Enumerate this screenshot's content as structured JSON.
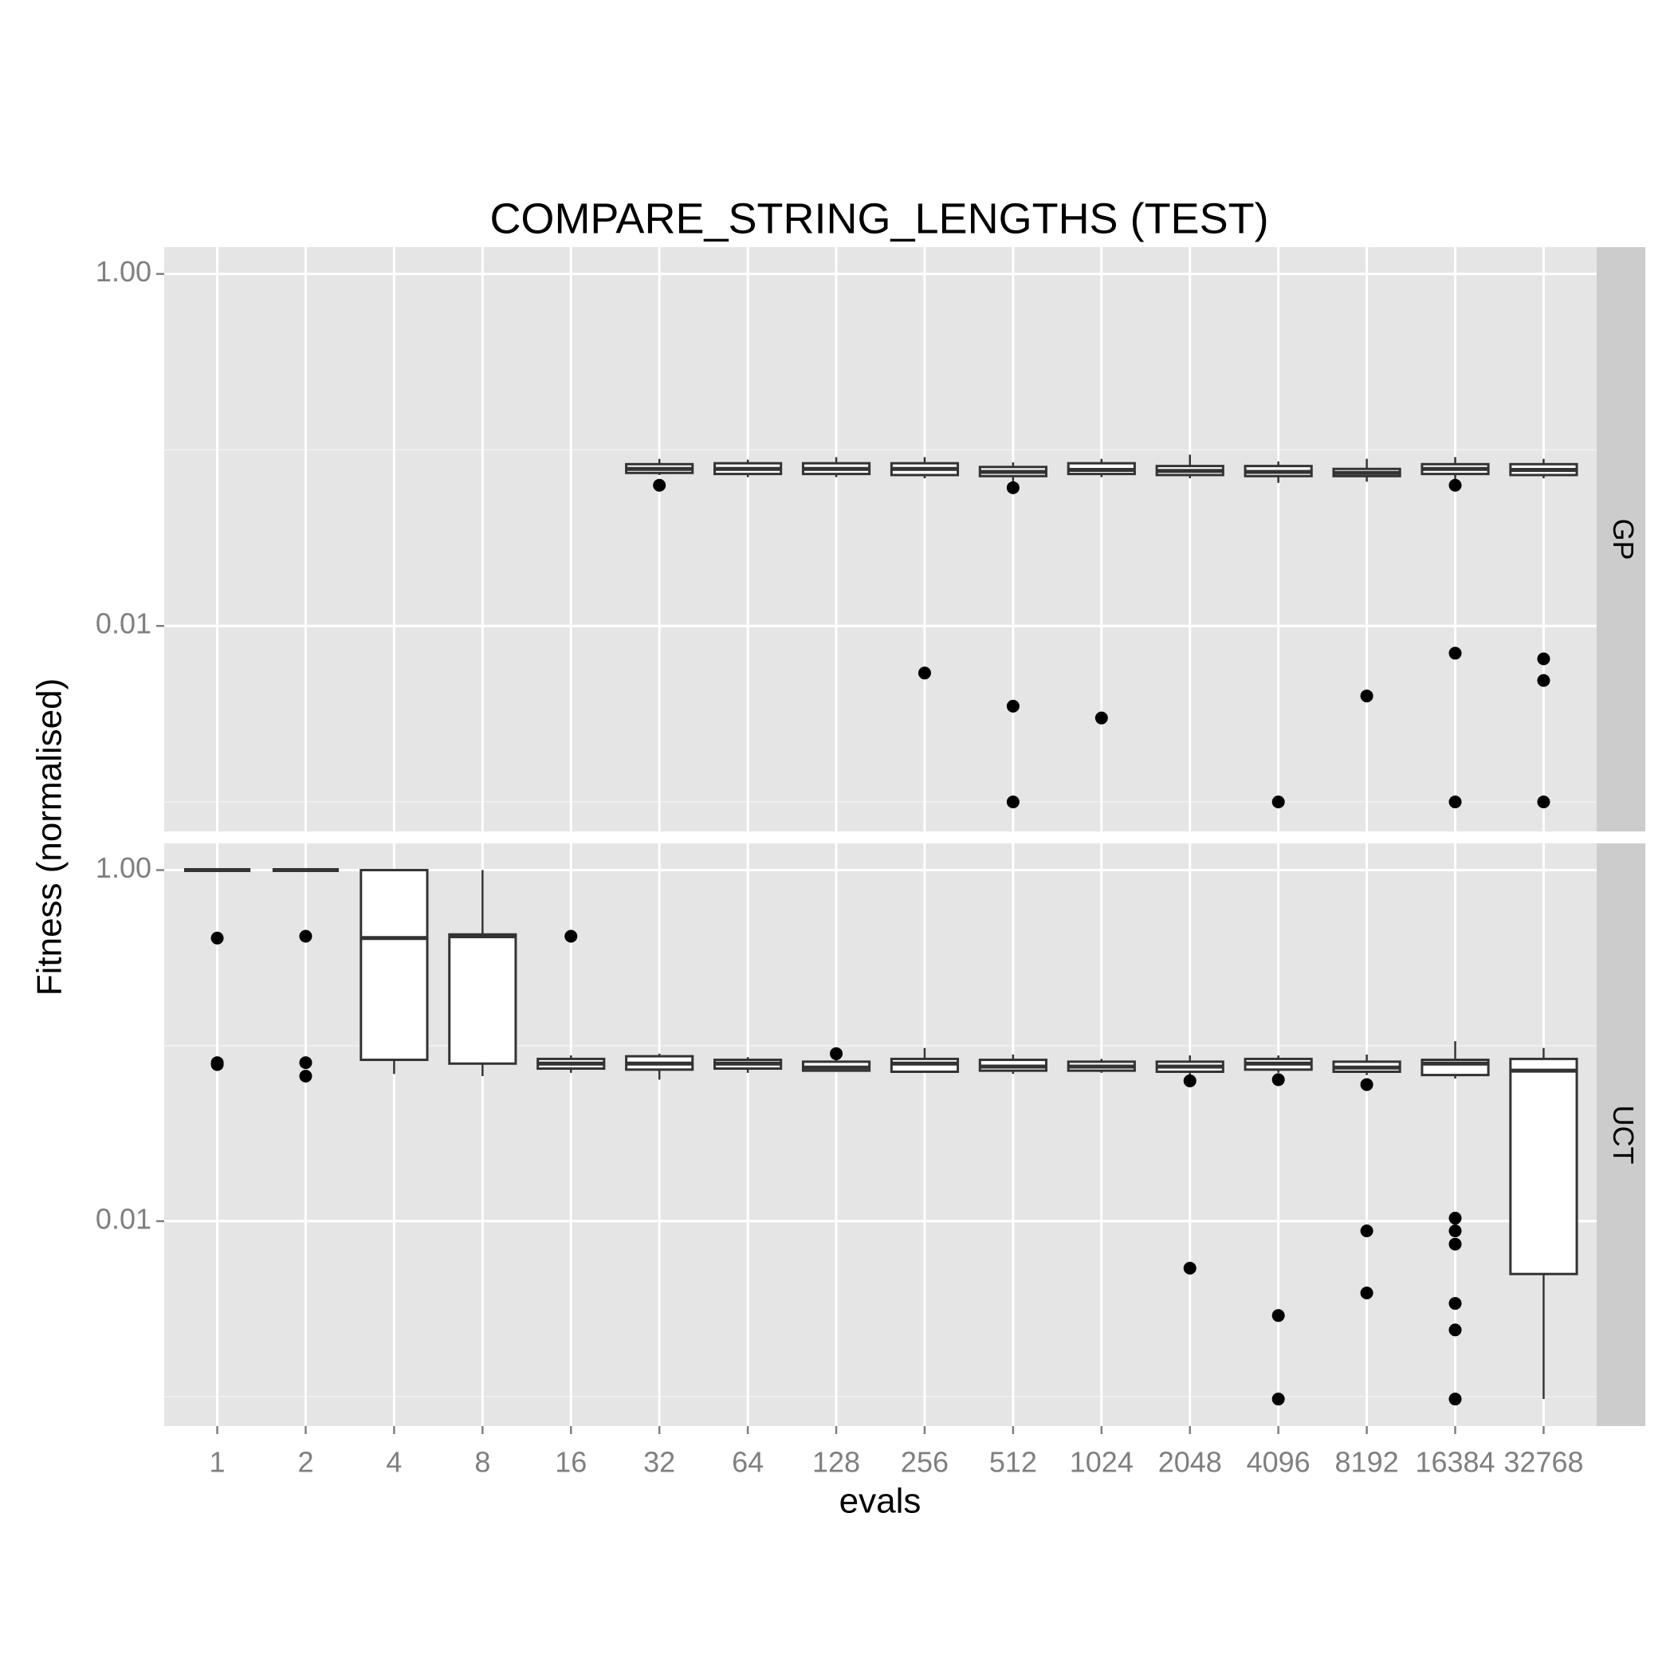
{
  "chart_data": {
    "type": "boxplot",
    "title": "COMPARE_STRING_LENGTHS (TEST)",
    "x_label": "evals",
    "y_label": "Fitness (normalised)",
    "log_y": true,
    "grid": true,
    "categories": [
      "1",
      "2",
      "4",
      "8",
      "16",
      "32",
      "64",
      "128",
      "256",
      "512",
      "1024",
      "2048",
      "4096",
      "8192",
      "16384",
      "32768"
    ],
    "ylim": [
      0.00068,
      1.42
    ],
    "yticks": [
      {
        "value": 0.01,
        "label": "0.01"
      },
      {
        "value": 1,
        "label": "1.00"
      }
    ],
    "minor_yticks": [
      0.001,
      0.1
    ],
    "box_color": "#333333",
    "series": [
      {
        "name": "GP",
        "fill": "#ffffff",
        "boxes": [
          null,
          null,
          null,
          null,
          null,
          {
            "min": 0.072,
            "q1": 0.074,
            "median": 0.078,
            "q3": 0.083,
            "max": 0.089,
            "outliers": [
              0.063
            ]
          },
          {
            "min": 0.07,
            "q1": 0.073,
            "median": 0.078,
            "q3": 0.084,
            "max": 0.088,
            "outliers": []
          },
          {
            "min": 0.07,
            "q1": 0.073,
            "median": 0.078,
            "q3": 0.084,
            "max": 0.091,
            "outliers": []
          },
          {
            "min": 0.069,
            "q1": 0.072,
            "median": 0.078,
            "q3": 0.084,
            "max": 0.091,
            "outliers": [
              0.0054
            ]
          },
          {
            "min": 0.066,
            "q1": 0.071,
            "median": 0.075,
            "q3": 0.08,
            "max": 0.085,
            "outliers": [
              0.061,
              0.0035,
              0.001
            ]
          },
          {
            "min": 0.07,
            "q1": 0.073,
            "median": 0.077,
            "q3": 0.084,
            "max": 0.089,
            "outliers": [
              0.003
            ]
          },
          {
            "min": 0.069,
            "q1": 0.072,
            "median": 0.076,
            "q3": 0.081,
            "max": 0.094,
            "outliers": []
          },
          {
            "min": 0.065,
            "q1": 0.071,
            "median": 0.075,
            "q3": 0.081,
            "max": 0.086,
            "outliers": [
              0.001
            ]
          },
          {
            "min": 0.066,
            "q1": 0.071,
            "median": 0.074,
            "q3": 0.078,
            "max": 0.089,
            "outliers": [
              0.004
            ]
          },
          {
            "min": 0.067,
            "q1": 0.073,
            "median": 0.078,
            "q3": 0.083,
            "max": 0.091,
            "outliers": [
              0.063,
              0.007,
              0.001
            ]
          },
          {
            "min": 0.069,
            "q1": 0.072,
            "median": 0.077,
            "q3": 0.083,
            "max": 0.089,
            "outliers": [
              0.0065,
              0.0049,
              0.001
            ]
          }
        ]
      },
      {
        "name": "UCT",
        "fill": "#ffffff",
        "boxes": [
          {
            "min": 1,
            "q1": 1,
            "median": 1,
            "q3": 1,
            "max": 1,
            "outliers": [
              0.41,
              0.08,
              0.078
            ]
          },
          {
            "min": 1,
            "q1": 1,
            "median": 1,
            "q3": 1,
            "max": 1,
            "outliers": [
              0.42,
              0.08,
              0.067
            ]
          },
          {
            "min": 0.069,
            "q1": 0.083,
            "median": 0.41,
            "q3": 1,
            "max": 1,
            "outliers": []
          },
          {
            "min": 0.067,
            "q1": 0.079,
            "median": 0.42,
            "q3": 0.43,
            "max": 1,
            "outliers": []
          },
          {
            "min": 0.07,
            "q1": 0.074,
            "median": 0.079,
            "q3": 0.084,
            "max": 0.088,
            "outliers": [
              0.42
            ]
          },
          {
            "min": 0.064,
            "q1": 0.073,
            "median": 0.079,
            "q3": 0.087,
            "max": 0.09,
            "outliers": []
          },
          {
            "min": 0.07,
            "q1": 0.074,
            "median": 0.079,
            "q3": 0.083,
            "max": 0.086,
            "outliers": []
          },
          {
            "min": 0.071,
            "q1": 0.072,
            "median": 0.075,
            "q3": 0.081,
            "max": 0.086,
            "outliers": [
              0.09
            ]
          },
          {
            "min": 0.07,
            "q1": 0.071,
            "median": 0.079,
            "q3": 0.084,
            "max": 0.097,
            "outliers": []
          },
          {
            "min": 0.069,
            "q1": 0.072,
            "median": 0.076,
            "q3": 0.083,
            "max": 0.089,
            "outliers": []
          },
          {
            "min": 0.07,
            "q1": 0.072,
            "median": 0.076,
            "q3": 0.081,
            "max": 0.084,
            "outliers": []
          },
          {
            "min": 0.068,
            "q1": 0.071,
            "median": 0.076,
            "q3": 0.081,
            "max": 0.088,
            "outliers": [
              0.063,
              0.0054
            ]
          },
          {
            "min": 0.07,
            "q1": 0.073,
            "median": 0.079,
            "q3": 0.084,
            "max": 0.088,
            "outliers": [
              0.064,
              0.0029,
              0.00097
            ]
          },
          {
            "min": 0.068,
            "q1": 0.071,
            "median": 0.075,
            "q3": 0.081,
            "max": 0.089,
            "outliers": [
              0.06,
              0.0088,
              0.0039
            ]
          },
          {
            "min": 0.065,
            "q1": 0.068,
            "median": 0.079,
            "q3": 0.083,
            "max": 0.106,
            "outliers": [
              0.0104,
              0.0088,
              0.0074,
              0.0034,
              0.0024,
              0.00097
            ]
          },
          {
            "min": 0.00097,
            "q1": 0.005,
            "median": 0.072,
            "q3": 0.084,
            "max": 0.097,
            "outliers": []
          }
        ]
      }
    ]
  }
}
